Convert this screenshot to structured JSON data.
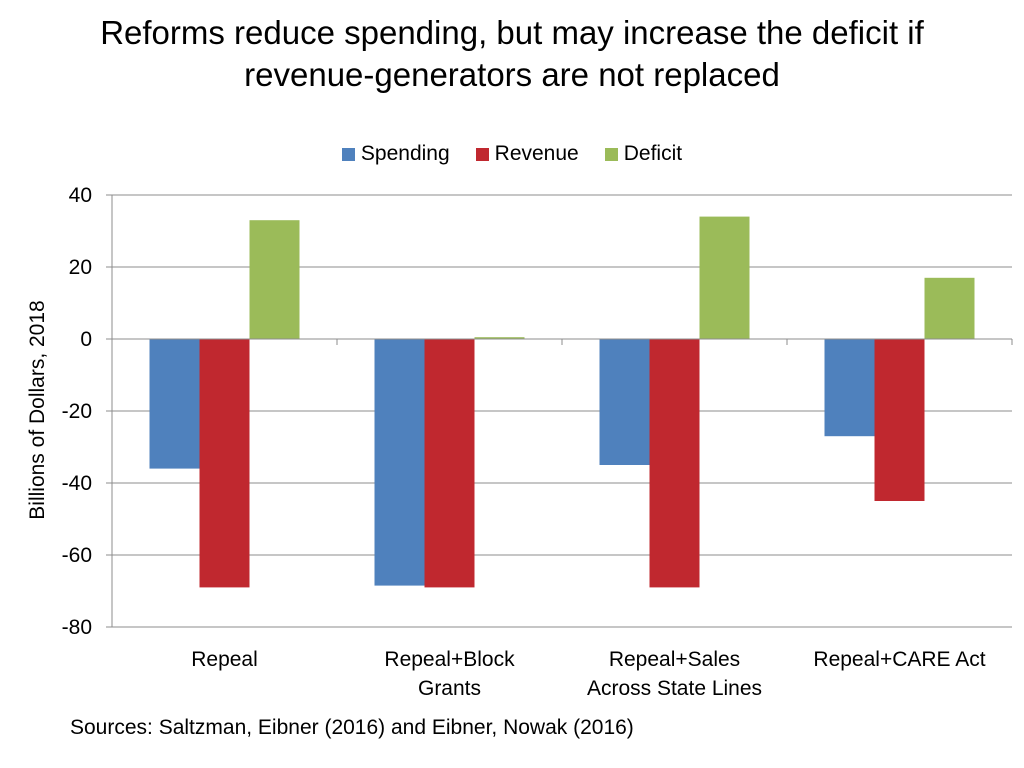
{
  "chart_data": {
    "type": "bar",
    "title_lines": [
      "Reforms reduce spending, but may increase the deficit if",
      "revenue-generators are not replaced"
    ],
    "categories": [
      [
        "Repeal"
      ],
      [
        "Repeal+Block",
        "Grants"
      ],
      [
        "Repeal+Sales",
        "Across State Lines"
      ],
      [
        "Repeal+CARE Act"
      ]
    ],
    "series": [
      {
        "name": "Spending",
        "color": "#4F81BD",
        "values": [
          -36,
          -68.5,
          -35,
          -27
        ]
      },
      {
        "name": "Revenue",
        "color": "#C0282F",
        "values": [
          -69,
          -69,
          -69,
          -45
        ]
      },
      {
        "name": "Deficit",
        "color": "#9BBB59",
        "values": [
          33,
          0.5,
          34,
          17
        ]
      }
    ],
    "ylabel": "Billions of Dollars, 2018",
    "xlabel": "",
    "ylim": [
      -80,
      40
    ],
    "yticks": [
      40,
      20,
      0,
      -20,
      -40,
      -60,
      -80
    ],
    "grid": true,
    "legend_position": "top",
    "source": "Sources: Saltzman, Eibner (2016) and Eibner, Nowak (2016)"
  }
}
